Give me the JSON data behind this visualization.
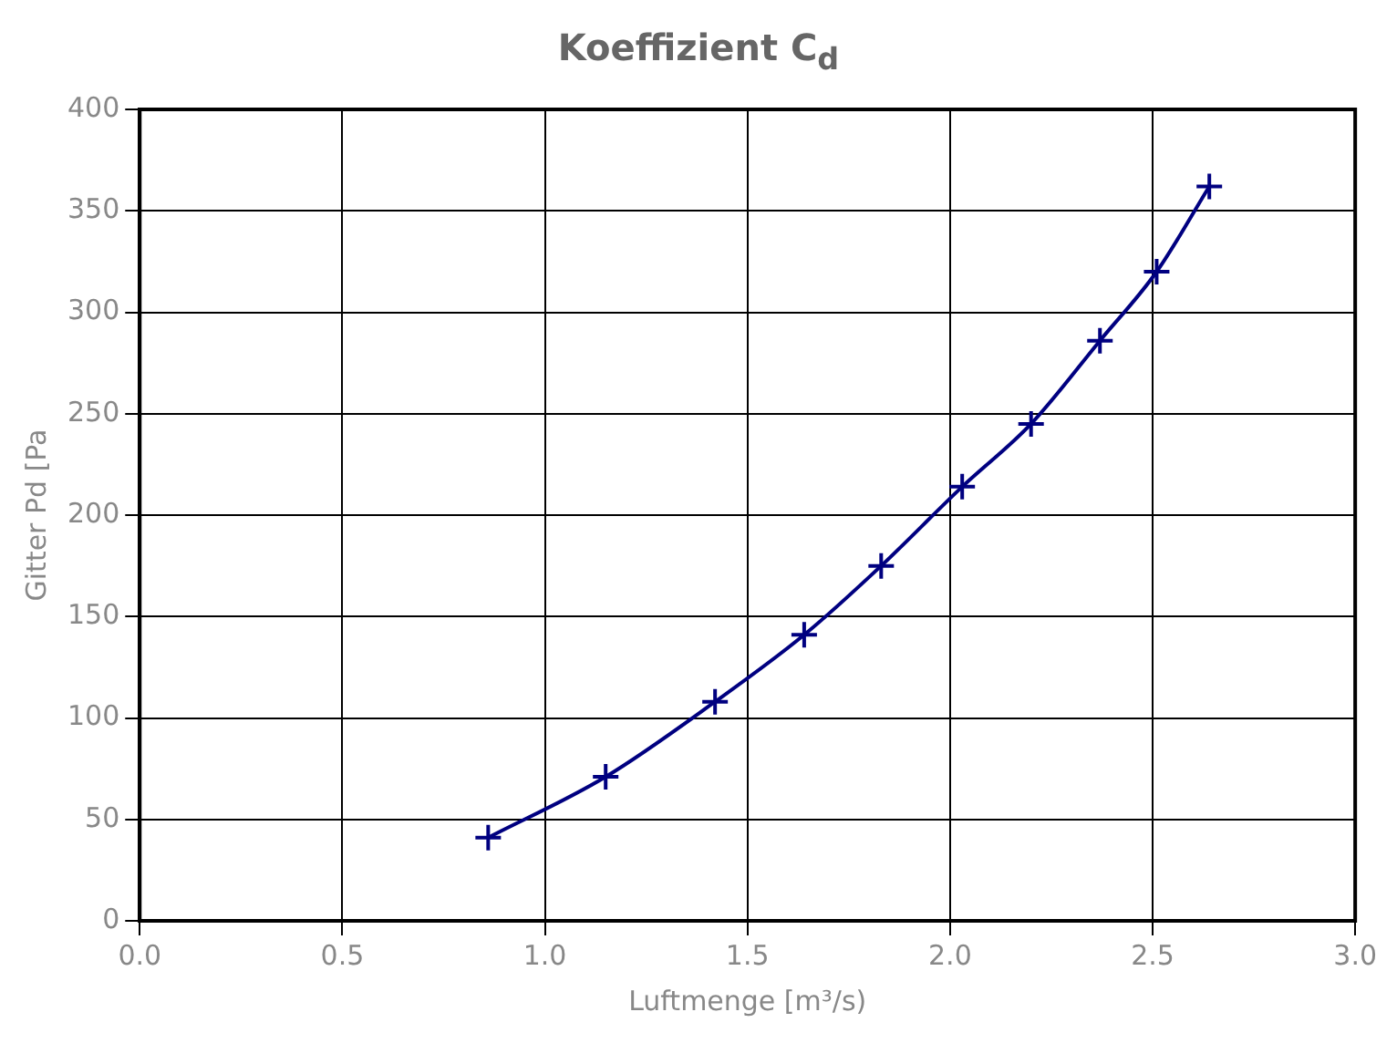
{
  "chart_data": {
    "type": "line",
    "title": "Koeffizient C$_{d}$",
    "xlabel": "Luftmenge [m³/s)",
    "ylabel": "Gitter Pd [Pa",
    "x": [
      0.86,
      1.15,
      1.42,
      1.64,
      1.83,
      2.03,
      2.2,
      2.37,
      2.51,
      2.64
    ],
    "series": [
      {
        "color": "#000080",
        "values": [
          41,
          71,
          108,
          141,
          175,
          214,
          245,
          286,
          320,
          362
        ]
      }
    ],
    "xlim": [
      0,
      3
    ],
    "xticks": [
      {
        "value": 0,
        "label": "0.0"
      },
      {
        "value": 0.5,
        "label": "0.5"
      },
      {
        "value": 1,
        "label": "1.0"
      },
      {
        "value": 1.5,
        "label": "1.5"
      },
      {
        "value": 2,
        "label": "2.0"
      },
      {
        "value": 2.5,
        "label": "2.5"
      },
      {
        "value": 3,
        "label": "3.0"
      }
    ],
    "ylim": [
      0,
      400
    ],
    "yticks": [
      0,
      50,
      100,
      150,
      200,
      250,
      300,
      350,
      400
    ],
    "grid": true,
    "legend": false,
    "marker": "cross",
    "line_style": "solid"
  }
}
